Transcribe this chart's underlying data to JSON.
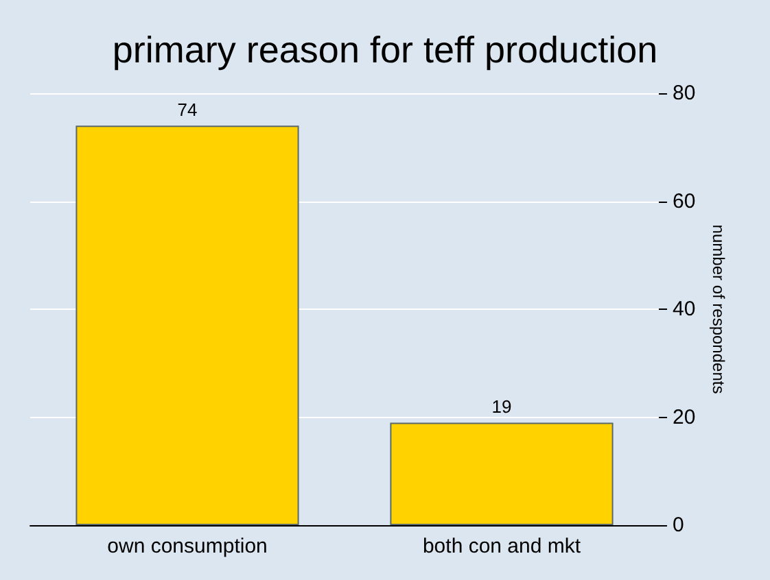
{
  "chart_data": {
    "type": "bar",
    "title": "primary reason for teff production",
    "ylabel": "number of respondents",
    "categories": [
      "own consumption",
      "both con and mkt"
    ],
    "values": [
      74,
      19
    ],
    "color": "#ffd200",
    "ylim": [
      0,
      80
    ],
    "yticks": [
      0,
      20,
      40,
      60,
      80
    ],
    "grid": "y",
    "data_labels": true
  }
}
